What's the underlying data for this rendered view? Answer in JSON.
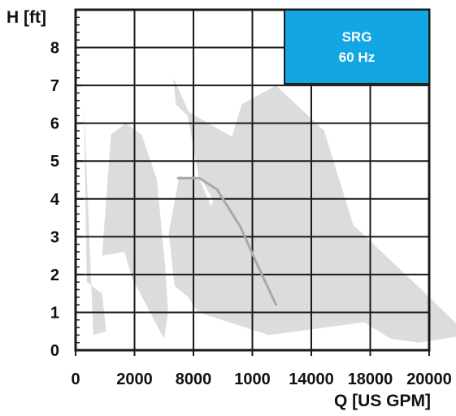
{
  "chart_data": {
    "type": "area",
    "title": "",
    "xlabel": "Q [US GPM]",
    "ylabel": "H [ft]",
    "x_tick_labels": [
      "0",
      "2000",
      "8000",
      "1000",
      "14000",
      "18000",
      "20000"
    ],
    "y_tick_labels": [
      "0",
      "1",
      "2",
      "3",
      "4",
      "5",
      "6",
      "7",
      "8"
    ],
    "ylim": [
      0,
      9
    ],
    "grid": true,
    "badge": {
      "line1": "SRG",
      "line2": "60 Hz",
      "color": "#12a7e3"
    },
    "colors": {
      "region_fill": "#dcdcdc",
      "curve": "#a9a9a9",
      "grid": "#1a1a1a"
    },
    "series": [
      {
        "x_index": [
          0.14,
          0.3,
          0.52,
          0.45,
          0.19
        ],
        "y": [
          6.5,
          0.4,
          0.5,
          1.5,
          1.8
        ]
      },
      {
        "x_index": [
          0.6,
          0.85,
          1.12,
          1.38,
          1.52,
          1.57,
          1.5,
          0.96,
          0.83,
          0.45
        ],
        "y": [
          5.7,
          6.0,
          5.7,
          4.5,
          2.2,
          1.0,
          0.3,
          1.9,
          2.6,
          2.5
        ]
      },
      {
        "x_index": [
          1.58,
          1.76,
          2.11,
          2.3,
          2.82,
          3.4,
          4.22,
          4.85,
          5.07,
          5.19,
          3.28,
          2.08,
          1.91,
          1.68
        ],
        "y": [
          3.1,
          4.6,
          4.5,
          3.8,
          6.5,
          7.0,
          5.8,
          2.6,
          2.4,
          0.8,
          0.4,
          1.0,
          1.4,
          1.7
        ]
      },
      {
        "x_index": [
          5.82,
          6.66,
          5.87,
          4.45,
          3.15,
          1.92,
          1.66,
          1.7,
          1.9,
          2.1,
          2.1,
          2.4,
          2.6,
          3.8,
          5.35
        ],
        "y": [
          0.2,
          0.4,
          1.6,
          3.7,
          5.2,
          6.3,
          7.2,
          6.5,
          6.2,
          4.5,
          4.6,
          3.8,
          3.2,
          1.8,
          0.3
        ]
      }
    ],
    "curve": {
      "x_index": [
        1.74,
        2.1,
        2.4,
        2.8,
        3.1,
        3.4
      ],
      "y": [
        4.55,
        4.55,
        4.25,
        3.25,
        2.2,
        1.2
      ]
    }
  }
}
